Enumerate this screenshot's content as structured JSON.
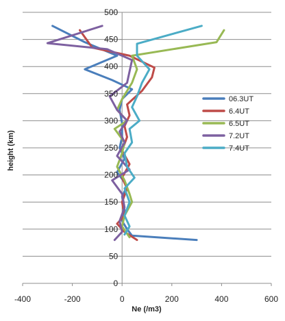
{
  "chart_data": {
    "type": "line",
    "title": "",
    "xlabel": "Ne (/m3)",
    "ylabel": "height (km)",
    "xlim": [
      -400,
      600
    ],
    "ylim": [
      0,
      500
    ],
    "xticks": [
      -400,
      -200,
      0,
      200,
      400,
      600
    ],
    "yticks": [
      0,
      50,
      100,
      150,
      200,
      250,
      300,
      350,
      400,
      450,
      500
    ],
    "grid": "horizontal",
    "legend": "right",
    "series": [
      {
        "name": "06.3UT",
        "color": "#4a7ebb",
        "points": [
          [
            -280,
            475
          ],
          [
            -150,
            445
          ],
          [
            -20,
            420
          ],
          [
            -150,
            395
          ],
          [
            -40,
            375
          ],
          [
            40,
            358
          ],
          [
            0,
            340
          ],
          [
            -10,
            320
          ],
          [
            0,
            295
          ],
          [
            0,
            270
          ],
          [
            -10,
            250
          ],
          [
            10,
            230
          ],
          [
            -20,
            205
          ],
          [
            20,
            180
          ],
          [
            0,
            160
          ],
          [
            10,
            135
          ],
          [
            0,
            115
          ],
          [
            20,
            100
          ],
          [
            40,
            88
          ],
          [
            300,
            80
          ]
        ]
      },
      {
        "name": "6.4UT",
        "color": "#be4b48",
        "points": [
          [
            -170,
            467
          ],
          [
            -120,
            435
          ],
          [
            30,
            420
          ],
          [
            130,
            398
          ],
          [
            120,
            380
          ],
          [
            80,
            355
          ],
          [
            20,
            330
          ],
          [
            30,
            310
          ],
          [
            10,
            290
          ],
          [
            20,
            270
          ],
          [
            0,
            245
          ],
          [
            30,
            220
          ],
          [
            0,
            195
          ],
          [
            20,
            175
          ],
          [
            0,
            150
          ],
          [
            10,
            125
          ],
          [
            -20,
            110
          ],
          [
            10,
            95
          ],
          [
            60,
            80
          ]
        ]
      },
      {
        "name": "6.5UT",
        "color": "#98b954",
        "points": [
          [
            410,
            467
          ],
          [
            380,
            445
          ],
          [
            40,
            420
          ],
          [
            60,
            395
          ],
          [
            40,
            370
          ],
          [
            0,
            340
          ],
          [
            -20,
            320
          ],
          [
            20,
            300
          ],
          [
            -30,
            285
          ],
          [
            10,
            260
          ],
          [
            0,
            240
          ],
          [
            -20,
            215
          ],
          [
            10,
            190
          ],
          [
            30,
            165
          ],
          [
            40,
            150
          ],
          [
            10,
            125
          ],
          [
            0,
            105
          ],
          [
            30,
            85
          ]
        ]
      },
      {
        "name": "7.2UT",
        "color": "#7d60a0",
        "points": [
          [
            -80,
            475
          ],
          [
            -300,
            443
          ],
          [
            -60,
            432
          ],
          [
            40,
            412
          ],
          [
            20,
            370
          ],
          [
            -50,
            345
          ],
          [
            -20,
            320
          ],
          [
            20,
            300
          ],
          [
            -10,
            280
          ],
          [
            10,
            260
          ],
          [
            -20,
            235
          ],
          [
            30,
            210
          ],
          [
            -40,
            190
          ],
          [
            0,
            165
          ],
          [
            10,
            140
          ],
          [
            -10,
            115
          ],
          [
            0,
            95
          ],
          [
            -30,
            80
          ]
        ]
      },
      {
        "name": "7.4UT",
        "color": "#4bacc6",
        "points": [
          [
            320,
            475
          ],
          [
            60,
            442
          ],
          [
            60,
            420
          ],
          [
            110,
            395
          ],
          [
            80,
            370
          ],
          [
            60,
            345
          ],
          [
            40,
            325
          ],
          [
            70,
            300
          ],
          [
            30,
            285
          ],
          [
            40,
            260
          ],
          [
            10,
            240
          ],
          [
            20,
            215
          ],
          [
            50,
            195
          ],
          [
            10,
            175
          ],
          [
            30,
            150
          ],
          [
            10,
            125
          ],
          [
            30,
            105
          ],
          [
            10,
            90
          ]
        ]
      }
    ]
  }
}
